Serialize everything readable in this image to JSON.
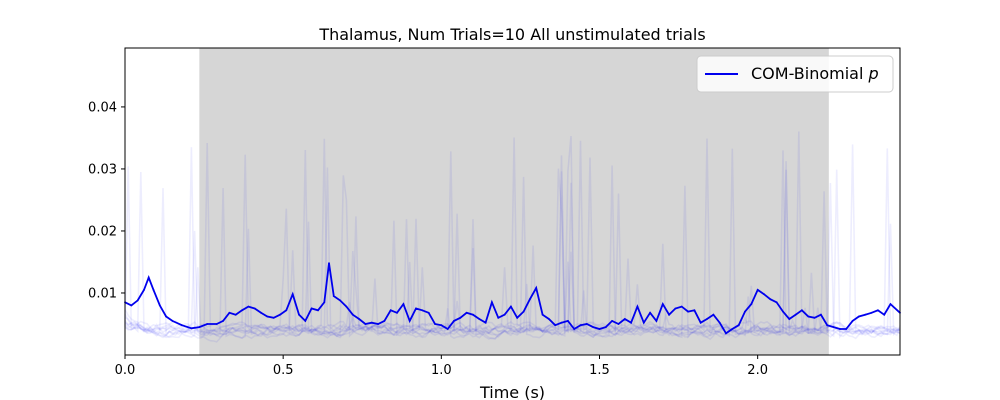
{
  "chart_data": {
    "type": "line",
    "title": "Thalamus, Num Trials=10 All unstimulated trials",
    "xlabel": "Time (s)",
    "ylabel": "",
    "xlim": [
      0.0,
      2.45
    ],
    "ylim": [
      0.0,
      0.0495
    ],
    "x_ticks": [
      "0.0",
      "0.5",
      "1.0",
      "1.5",
      "2.0"
    ],
    "x_tick_values": [
      0.0,
      0.5,
      1.0,
      1.5,
      2.0
    ],
    "y_ticks": [
      "0.01",
      "0.02",
      "0.03",
      "0.04"
    ],
    "y_tick_values": [
      0.01,
      0.02,
      0.03,
      0.04
    ],
    "grid": false,
    "legend_position": "top-right",
    "legend": [
      {
        "label": "COM-Binomial p",
        "label_main": "COM-Binomial ",
        "label_italic": "p",
        "color": "#0000ee"
      }
    ],
    "shaded_region": {
      "x_start": 0.235,
      "x_end": 2.225,
      "color": "#d6d6d6"
    },
    "series": [
      {
        "name": "COM-Binomial p",
        "color": "#0000ee",
        "x": [
          0.0,
          0.02,
          0.04,
          0.06,
          0.075,
          0.09,
          0.11,
          0.13,
          0.15,
          0.18,
          0.21,
          0.235,
          0.26,
          0.29,
          0.31,
          0.33,
          0.35,
          0.37,
          0.39,
          0.41,
          0.43,
          0.45,
          0.47,
          0.49,
          0.51,
          0.53,
          0.55,
          0.57,
          0.59,
          0.61,
          0.63,
          0.645,
          0.66,
          0.68,
          0.7,
          0.72,
          0.74,
          0.76,
          0.78,
          0.8,
          0.82,
          0.84,
          0.86,
          0.88,
          0.9,
          0.92,
          0.94,
          0.96,
          0.98,
          1.0,
          1.02,
          1.04,
          1.06,
          1.08,
          1.1,
          1.12,
          1.14,
          1.16,
          1.18,
          1.2,
          1.22,
          1.24,
          1.26,
          1.28,
          1.3,
          1.32,
          1.34,
          1.36,
          1.38,
          1.4,
          1.42,
          1.44,
          1.46,
          1.48,
          1.5,
          1.52,
          1.54,
          1.56,
          1.58,
          1.6,
          1.62,
          1.64,
          1.66,
          1.68,
          1.7,
          1.72,
          1.74,
          1.76,
          1.78,
          1.8,
          1.82,
          1.84,
          1.86,
          1.88,
          1.9,
          1.92,
          1.94,
          1.96,
          1.98,
          2.0,
          2.02,
          2.04,
          2.06,
          2.08,
          2.1,
          2.12,
          2.14,
          2.16,
          2.18,
          2.2,
          2.22,
          2.24,
          2.26,
          2.28,
          2.3,
          2.32,
          2.34,
          2.36,
          2.38,
          2.4,
          2.42,
          2.45
        ],
        "y": [
          0.0085,
          0.008,
          0.0088,
          0.0105,
          0.0125,
          0.0105,
          0.008,
          0.0062,
          0.0055,
          0.0048,
          0.0043,
          0.0045,
          0.005,
          0.005,
          0.0055,
          0.0068,
          0.0065,
          0.0072,
          0.0078,
          0.0075,
          0.0068,
          0.0062,
          0.006,
          0.0065,
          0.0072,
          0.0098,
          0.0065,
          0.0055,
          0.0075,
          0.0072,
          0.0085,
          0.0148,
          0.0095,
          0.0088,
          0.0078,
          0.0065,
          0.0058,
          0.005,
          0.0052,
          0.005,
          0.0055,
          0.0072,
          0.0068,
          0.0082,
          0.0055,
          0.0075,
          0.0072,
          0.0068,
          0.005,
          0.0048,
          0.0042,
          0.0055,
          0.006,
          0.0068,
          0.0065,
          0.0058,
          0.0052,
          0.0085,
          0.006,
          0.0065,
          0.0078,
          0.006,
          0.007,
          0.009,
          0.0108,
          0.0065,
          0.0058,
          0.0048,
          0.0052,
          0.0055,
          0.0042,
          0.0048,
          0.005,
          0.0045,
          0.0042,
          0.0045,
          0.0055,
          0.005,
          0.0058,
          0.0052,
          0.0078,
          0.0052,
          0.0068,
          0.0055,
          0.0082,
          0.0065,
          0.0075,
          0.0078,
          0.007,
          0.0072,
          0.0052,
          0.0058,
          0.0065,
          0.0052,
          0.0035,
          0.0042,
          0.0048,
          0.007,
          0.0082,
          0.0105,
          0.0098,
          0.009,
          0.0085,
          0.007,
          0.0058,
          0.0065,
          0.0072,
          0.0062,
          0.006,
          0.0065,
          0.0048,
          0.0045,
          0.0042,
          0.0042,
          0.0055,
          0.0062,
          0.0065,
          0.0068,
          0.0072,
          0.0065,
          0.0082,
          0.0068
        ]
      }
    ]
  }
}
